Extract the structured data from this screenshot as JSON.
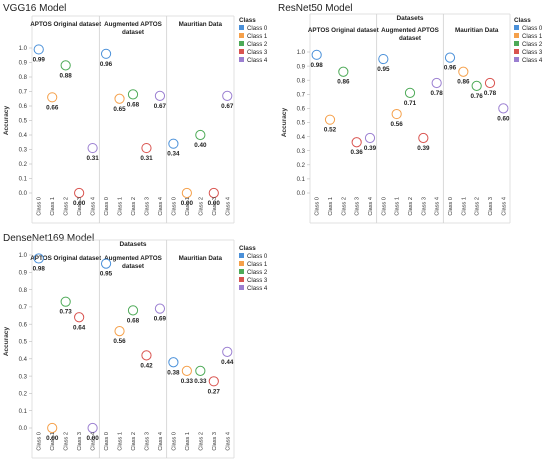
{
  "chart_data": [
    {
      "type": "scatter",
      "title": "VGG16 Model",
      "super_header": "",
      "ylabel": "Accuracy",
      "ylim": [
        0,
        1.0
      ],
      "y_ticks": [
        "0.0",
        "0.1",
        "0.2",
        "0.3",
        "0.4",
        "0.5",
        "0.6",
        "0.7",
        "0.8",
        "0.9",
        "1.0"
      ],
      "legend_title": "Class",
      "legend_position": "right",
      "grid": false,
      "groups": [
        {
          "name": "APTOS Original dataset",
          "categories": [
            "Class 0",
            "Class 1",
            "Class 2",
            "Class 3",
            "Class 4"
          ],
          "values": [
            0.99,
            0.66,
            0.88,
            0.0,
            0.31
          ],
          "labels": [
            "0.99",
            "0.66",
            "0.88",
            "0.00",
            "0.31"
          ]
        },
        {
          "name": "Augmented APTOS dataset",
          "categories": [
            "Class 0",
            "Class 1",
            "Class 2",
            "Class 3",
            "Class 4"
          ],
          "values": [
            0.96,
            0.65,
            0.68,
            0.31,
            0.67
          ],
          "labels": [
            "0.96",
            "0.65",
            "0.68",
            "0.31",
            "0.67"
          ]
        },
        {
          "name": "Mauritian Data",
          "categories": [
            "Class 0",
            "Class 1",
            "Class 2",
            "Class 3",
            "Class 4"
          ],
          "values": [
            0.34,
            0.0,
            0.4,
            0.0,
            0.67
          ],
          "labels": [
            "0.34",
            "0.00",
            "0.40",
            "0.00",
            "0.67"
          ]
        }
      ]
    },
    {
      "type": "scatter",
      "title": "ResNet50 Model",
      "super_header": "Datasets",
      "ylabel": "Accuracy",
      "ylim": [
        0,
        1.0
      ],
      "y_ticks": [
        "0.0",
        "0.1",
        "0.2",
        "0.3",
        "0.4",
        "0.5",
        "0.6",
        "0.7",
        "0.8",
        "0.9",
        "1.0"
      ],
      "legend_title": "Class",
      "legend_position": "right",
      "grid": false,
      "groups": [
        {
          "name": "APTOS Original dataset",
          "categories": [
            "Class 0",
            "Class 1",
            "Class 2",
            "Class 3",
            "Class 4"
          ],
          "values": [
            0.98,
            0.52,
            0.86,
            0.36,
            0.39
          ],
          "labels": [
            "0.98",
            "0.52",
            "0.86",
            "0.36",
            "0.39"
          ]
        },
        {
          "name": "Augmented APTOS dataset",
          "categories": [
            "Class 0",
            "Class 1",
            "Class 2",
            "Class 3",
            "Class 4"
          ],
          "values": [
            0.95,
            0.56,
            0.71,
            0.39,
            0.78
          ],
          "labels": [
            "0.95",
            "0.56",
            "0.71",
            "0.39",
            "0.78"
          ]
        },
        {
          "name": "Mauritian Data",
          "categories": [
            "Class 0",
            "Class 1",
            "Class 2",
            "Class 3",
            "Class 4"
          ],
          "values": [
            0.96,
            0.86,
            0.76,
            0.78,
            0.6
          ],
          "labels": [
            "0.96",
            "0.86",
            "0.76",
            "0.78",
            "0.60"
          ]
        }
      ]
    },
    {
      "type": "scatter",
      "title": "DenseNet169 Model",
      "super_header": "Datasets",
      "ylabel": "Accuracy",
      "ylim": [
        0,
        1.0
      ],
      "y_ticks": [
        "0.0",
        "0.1",
        "0.2",
        "0.3",
        "0.4",
        "0.5",
        "0.6",
        "0.7",
        "0.8",
        "0.9",
        "1.0"
      ],
      "legend_title": "Class",
      "legend_position": "right",
      "grid": false,
      "groups": [
        {
          "name": "APTOS Original dataset",
          "categories": [
            "Class 0",
            "Class 1",
            "Class 2",
            "Class 3",
            "Class 4"
          ],
          "values": [
            0.98,
            0.0,
            0.73,
            0.64,
            0.0
          ],
          "labels": [
            "0.98",
            "0.00",
            "0.73",
            "0.64",
            "0.00"
          ]
        },
        {
          "name": "Augmented APTOS dataset",
          "categories": [
            "Class 0",
            "Class 1",
            "Class 2",
            "Class 3",
            "Class 4"
          ],
          "values": [
            0.95,
            0.56,
            0.68,
            0.42,
            0.69
          ],
          "labels": [
            "0.95",
            "0.56",
            "0.68",
            "0.42",
            "0.69"
          ]
        },
        {
          "name": "Mauritian Data",
          "categories": [
            "Class 0",
            "Class 1",
            "Class 2",
            "Class 3",
            "Class 4"
          ],
          "values": [
            0.38,
            0.33,
            0.33,
            0.27,
            0.44
          ],
          "labels": [
            "0.38",
            "0.33",
            "0.33",
            "0.27",
            "0.44"
          ]
        }
      ]
    }
  ],
  "class_colors": [
    "#4a90d9",
    "#f5a04a",
    "#4daa57",
    "#d9534f",
    "#9b7fd1"
  ],
  "legend_labels": [
    "Class 0",
    "Class 1",
    "Class 2",
    "Class 3",
    "Class 4"
  ]
}
